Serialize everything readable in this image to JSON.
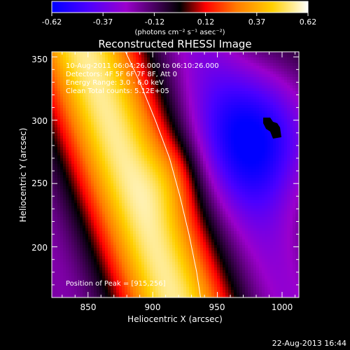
{
  "window": {
    "timestamp": "22-Aug-2013 16:44"
  },
  "colorbar": {
    "ticks": [
      "-0.62",
      "-0.37",
      "-0.12",
      "0.12",
      "0.37",
      "0.62"
    ],
    "unit_label": "(photons cm⁻² s⁻¹ asec⁻²)",
    "range": [
      -0.62,
      0.62
    ],
    "colormap": [
      "#0000ff",
      "#4b00ff",
      "#9a00cc",
      "#000000",
      "#ff0000",
      "#ff7a00",
      "#ffd000",
      "#ffffff"
    ]
  },
  "chart_data": {
    "type": "heatmap",
    "title": "Reconstructed RHESSI Image",
    "xlabel": "Heliocentric X (arcsec)",
    "ylabel": "Heliocentric Y (arcsec)",
    "xlim": [
      822,
      1013
    ],
    "ylim": [
      160,
      354
    ],
    "x_ticks": [
      "850",
      "900",
      "950",
      "1000"
    ],
    "y_ticks": [
      "200",
      "250",
      "300",
      "350"
    ],
    "x_tick_values": [
      850,
      900,
      950,
      1000
    ],
    "y_tick_values": [
      200,
      250,
      300,
      350
    ],
    "annotations": {
      "time": "10-Aug-2011 06:04:26.000 to 06:10:26.000",
      "detectors": "Detectors: 4F 5F 6F 7F 8F, Att 0",
      "energy": "Energy Range: 3.0 - 6.0 keV",
      "method": "Clean    Total counts: 5.12E+05",
      "peak": "Position of Peak = [915,256]"
    },
    "peak": {
      "x": 915,
      "y": 256,
      "value": 0.62
    },
    "limb": [
      [
        879,
        354
      ],
      [
        890,
        330
      ],
      [
        902,
        300
      ],
      [
        913,
        270
      ],
      [
        921,
        240
      ],
      [
        928,
        210
      ],
      [
        934,
        180
      ],
      [
        937,
        160
      ]
    ]
  }
}
